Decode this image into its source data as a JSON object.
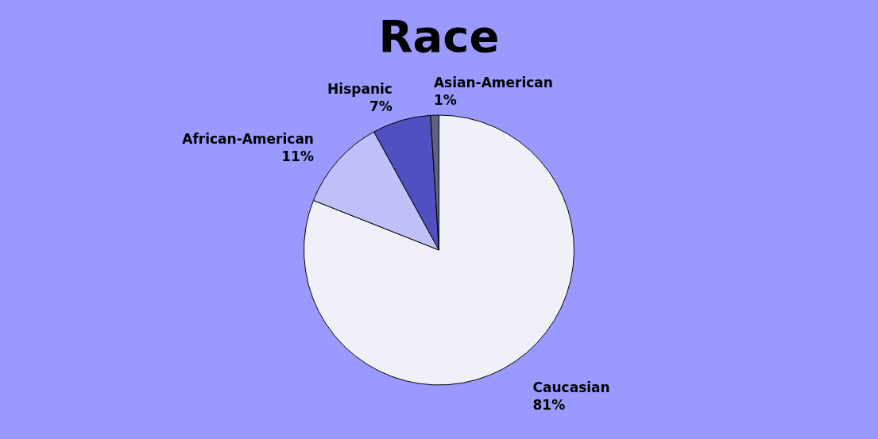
{
  "chart_data": {
    "type": "pie",
    "title": "Race",
    "categories": [
      "Caucasian",
      "African-American",
      "Hispanic",
      "Asian-American"
    ],
    "values": [
      81,
      11,
      7,
      1
    ],
    "value_labels": [
      "81%",
      "11%",
      "7%",
      "1%"
    ],
    "colors": [
      "#f0f0f8",
      "#c0c0f8",
      "#5050c0",
      "#606080"
    ],
    "legend": false
  }
}
